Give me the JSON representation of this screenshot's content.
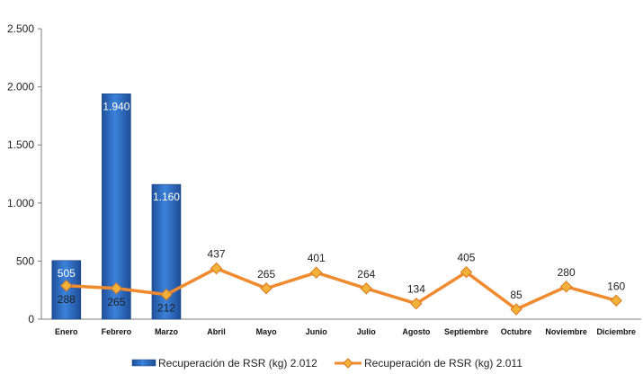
{
  "chart_data": {
    "type": "bar+line",
    "categories": [
      "Enero",
      "Febrero",
      "Marzo",
      "Abril",
      "Mayo",
      "Junio",
      "Julio",
      "Agosto",
      "Septiembre",
      "Octubre",
      "Noviembre",
      "Diciembre"
    ],
    "series": [
      {
        "name": "Recuperación de RSR (kg) 2.012",
        "type": "bar",
        "color": "#2E6FC4",
        "values": [
          505,
          1940,
          1160,
          null,
          null,
          null,
          null,
          null,
          null,
          null,
          null,
          null
        ],
        "labels": [
          "505",
          "1.940",
          "1.160",
          null,
          null,
          null,
          null,
          null,
          null,
          null,
          null,
          null
        ]
      },
      {
        "name": "Recuperación de RSR (kg) 2.011",
        "type": "line",
        "color": "#F08A2E",
        "values": [
          288,
          265,
          212,
          437,
          265,
          401,
          264,
          134,
          405,
          85,
          280,
          160
        ],
        "labels": [
          "288",
          "265",
          "212",
          "437",
          "265",
          "401",
          "264",
          "134",
          "405",
          "85",
          "280",
          "160"
        ]
      }
    ],
    "ylim": [
      0,
      2500
    ],
    "yticks": [
      0,
      500,
      1000,
      1500,
      2000,
      2500
    ],
    "ytick_labels": [
      "0",
      "500",
      "1.000",
      "1.500",
      "2.000",
      "2.500"
    ],
    "grid": false,
    "legend_position": "bottom"
  }
}
